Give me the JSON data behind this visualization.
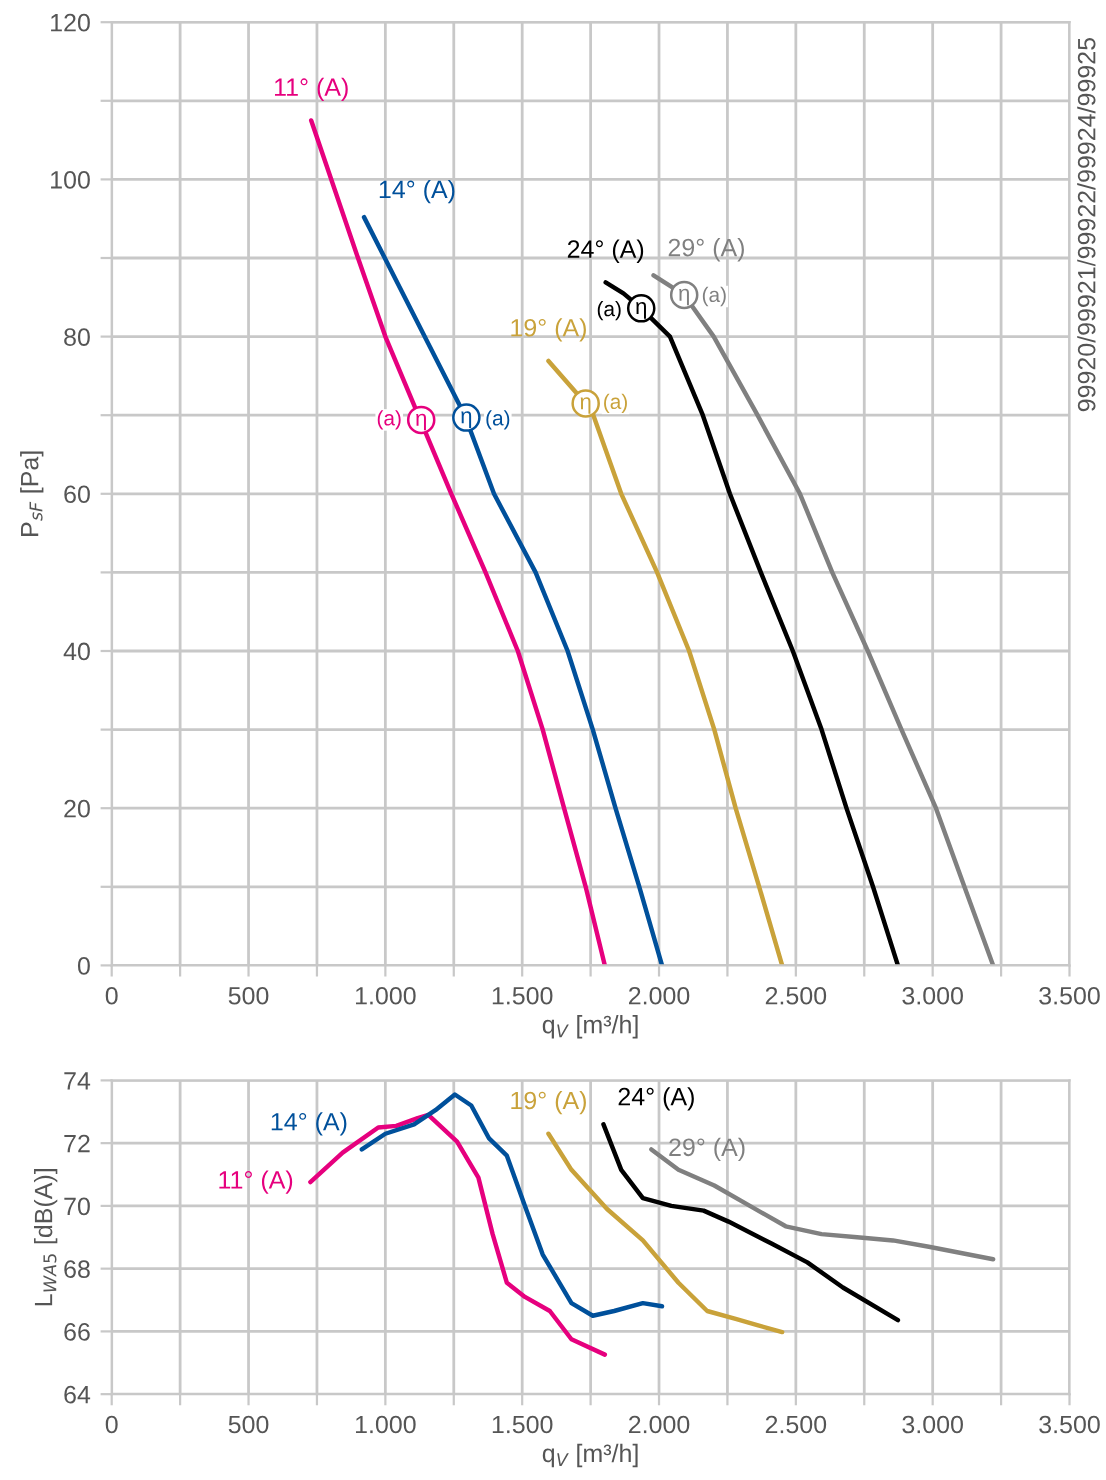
{
  "chart_data": [
    {
      "type": "line",
      "ylabel": "P$_{sF}$ [Pa]",
      "xlabel": "q$_{V}$ [m³/h]",
      "xlim": [
        0,
        3500
      ],
      "ylim": [
        0,
        120
      ],
      "xticks": [
        0,
        {
          "value": 250,
          "label": null
        },
        500,
        {
          "value": 750,
          "label": null
        },
        {
          "value": 1000,
          "label": "1.000"
        },
        {
          "value": 1250,
          "label": null
        },
        {
          "value": 1500,
          "label": "1.500"
        },
        {
          "value": 1750,
          "label": null
        },
        {
          "value": 2000,
          "label": "2.000"
        },
        {
          "value": 2250,
          "label": null
        },
        {
          "value": 2500,
          "label": "2.500"
        },
        {
          "value": 2750,
          "label": null
        },
        {
          "value": 3000,
          "label": "3.000"
        },
        {
          "value": 3250,
          "label": null
        },
        {
          "value": 3500,
          "label": "3.500"
        }
      ],
      "yticks": [
        0,
        {
          "value": 10,
          "label": null
        },
        20,
        {
          "value": 30,
          "label": null
        },
        40,
        {
          "value": 50,
          "label": null
        },
        60,
        {
          "value": 70,
          "label": null
        },
        80,
        {
          "value": 90,
          "label": null
        },
        100,
        {
          "value": 110,
          "label": null
        },
        120
      ],
      "grid": true,
      "legend": false,
      "marker": "none",
      "line_style": "solid",
      "series": [
        {
          "name": "11° (A)",
          "color": "#e6007e",
          "x": [
            729,
            900,
            1000,
            1241,
            1366,
            1484,
            1575,
            1653,
            1732,
            1802
          ],
          "values": [
            107.5,
            90,
            80,
            60,
            50,
            40,
            30,
            20,
            10,
            0
          ]
        },
        {
          "name": "14° (A)",
          "color": "#00509b",
          "x": [
            922,
            1100,
            1290,
            1397,
            1549,
            1666,
            1758,
            1841,
            1928,
            2011
          ],
          "values": [
            95.2,
            83,
            70,
            60,
            50,
            40,
            30,
            20,
            10,
            0
          ]
        },
        {
          "name": "19° (A)",
          "color": "#c9a23a",
          "x": [
            1596,
            1732,
            1760,
            1862,
            1993,
            2110,
            2202,
            2280,
            2366,
            2450
          ],
          "values": [
            76.9,
            71.5,
            70,
            60,
            50,
            40,
            30,
            20,
            10,
            0
          ]
        },
        {
          "name": "24° (A)",
          "color": "#000000",
          "x": [
            1805,
            1870,
            1935,
            2040,
            2160,
            2259,
            2372,
            2489,
            2594,
            2685,
            2782,
            2873
          ],
          "values": [
            86.9,
            85.5,
            83.6,
            80,
            70,
            60,
            50,
            40,
            30,
            20,
            10,
            0
          ]
        },
        {
          "name": "29° (A)",
          "color": "#808080",
          "x": [
            1980,
            2092,
            2200,
            2360,
            2515,
            2633,
            2763,
            2886,
            3012,
            3116,
            3221
          ],
          "values": [
            87.8,
            85.3,
            80,
            70,
            60,
            50,
            40,
            30,
            20,
            10,
            0
          ]
        }
      ],
      "annotations": [
        "99920/99921/99922/99924/99925",
        {
          "text": "(a)",
          "x": 1014,
          "y": 69.4
        },
        {
          "text": "η",
          "x": 1131,
          "y": 69.4
        },
        {
          "text": "η",
          "x": 1296,
          "y": 69.7
        },
        {
          "text": "(a)",
          "x": 1411,
          "y": 69.4
        },
        {
          "text": "η",
          "x": 1732,
          "y": 71.5
        },
        {
          "text": "(a)",
          "x": 1841,
          "y": 71.5
        },
        {
          "text": "(a)",
          "x": 1818,
          "y": 83.3
        },
        {
          "text": "η",
          "x": 1935,
          "y": 83.6
        },
        {
          "text": "η",
          "x": 2092,
          "y": 85.3
        },
        {
          "text": "(a)",
          "x": 2202,
          "y": 85.1
        }
      ]
    },
    {
      "type": "line",
      "ylabel": "L$_{WA5}$ [dB(A)]",
      "xlabel": "q$_{V}$ [m³/h]",
      "xlim": [
        0,
        3500
      ],
      "ylim": [
        64,
        74
      ],
      "xticks": [
        0,
        {
          "value": 250,
          "label": null
        },
        500,
        {
          "value": 750,
          "label": null
        },
        {
          "value": 1000,
          "label": "1.000"
        },
        {
          "value": 1250,
          "label": null
        },
        {
          "value": 1500,
          "label": "1.500"
        },
        {
          "value": 1750,
          "label": null
        },
        {
          "value": 2000,
          "label": "2.000"
        },
        {
          "value": 2250,
          "label": null
        },
        {
          "value": 2500,
          "label": "2.500"
        },
        {
          "value": 2750,
          "label": null
        },
        {
          "value": 3000,
          "label": "3.000"
        },
        {
          "value": 3250,
          "label": null
        },
        {
          "value": 3500,
          "label": "3.500"
        }
      ],
      "yticks": [
        64,
        66,
        68,
        70,
        72,
        74
      ],
      "grid": true,
      "legend": false,
      "marker": "none",
      "line_style": "solid",
      "series": [
        {
          "name": "11° (A)",
          "color": "#e6007e",
          "x": [
            726,
            844,
            974,
            1040,
            1118,
            1157,
            1262,
            1340,
            1392,
            1444,
            1510,
            1601,
            1680,
            1802
          ],
          "values": [
            70.76,
            71.7,
            72.5,
            72.55,
            72.8,
            72.9,
            72.05,
            70.9,
            69.1,
            67.55,
            67.1,
            66.65,
            65.75,
            65.26
          ]
        },
        {
          "name": "14° (A)",
          "color": "#00509b",
          "x": [
            914,
            1000,
            1105,
            1183,
            1254,
            1314,
            1379,
            1444,
            1510,
            1575,
            1680,
            1758,
            1836,
            1941,
            2011
          ],
          "values": [
            71.8,
            72.3,
            72.6,
            73.05,
            73.55,
            73.2,
            72.15,
            71.6,
            70.0,
            68.45,
            66.9,
            66.5,
            66.65,
            66.9,
            66.8
          ]
        },
        {
          "name": "19° (A)",
          "color": "#c9a23a",
          "x": [
            1596,
            1680,
            1810,
            1941,
            2071,
            2176,
            2280,
            2359,
            2450
          ],
          "values": [
            72.3,
            71.15,
            69.9,
            68.9,
            67.55,
            66.65,
            66.4,
            66.2,
            65.98
          ]
        },
        {
          "name": "24° (A)",
          "color": "#000000",
          "x": [
            1797,
            1862,
            1941,
            2045,
            2163,
            2254,
            2411,
            2542,
            2672,
            2873
          ],
          "values": [
            72.6,
            71.15,
            70.25,
            70.0,
            69.85,
            69.5,
            68.8,
            68.2,
            67.4,
            66.36
          ]
        },
        {
          "name": "29° (A)",
          "color": "#808080",
          "x": [
            1972,
            2071,
            2202,
            2332,
            2463,
            2594,
            2724,
            2855,
            2986,
            3221
          ],
          "values": [
            71.8,
            71.15,
            70.65,
            70.0,
            69.35,
            69.1,
            69.0,
            68.9,
            68.7,
            68.3
          ]
        }
      ]
    }
  ]
}
